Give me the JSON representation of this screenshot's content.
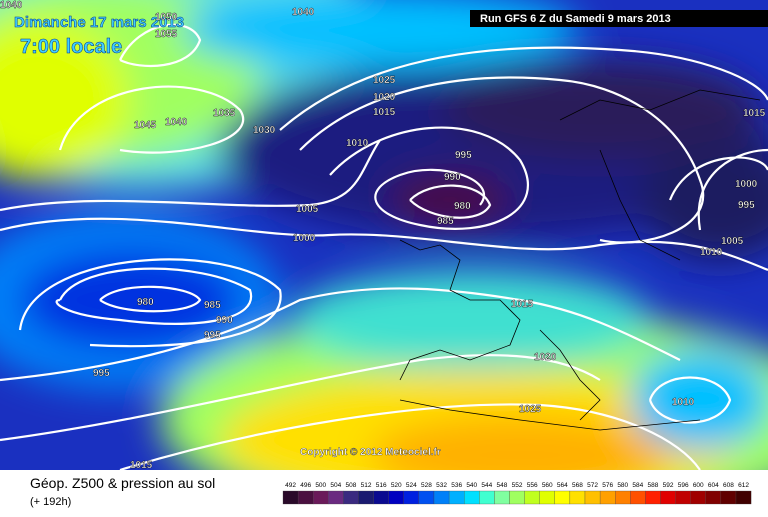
{
  "header": {
    "date": "Dimanche 17 mars 2013",
    "time": "7:00 locale",
    "run": "Run GFS 6 Z du Samedi 9 mars 2013"
  },
  "map": {
    "copyright": "Copyright © 2012 Meteociel.fr",
    "isobar_labels": [
      "1040",
      "1050",
      "1055",
      "1040",
      "1045",
      "1040",
      "1035",
      "1030",
      "1025",
      "1020",
      "1015",
      "1010",
      "995",
      "990",
      "980",
      "985",
      "1005",
      "1000",
      "1015",
      "1000",
      "995",
      "1005",
      "1010",
      "980",
      "985",
      "990",
      "995",
      "995",
      "1015",
      "1020",
      "1025",
      "1010",
      "1015"
    ]
  },
  "footer": {
    "title": "Géop. Z500 & pression au sol",
    "lead": "(+ 192h)"
  },
  "legend": {
    "labels": [
      "492",
      "496",
      "500",
      "504",
      "508",
      "512",
      "516",
      "520",
      "524",
      "528",
      "532",
      "536",
      "540",
      "544",
      "548",
      "552",
      "556",
      "560",
      "564",
      "568",
      "572",
      "576",
      "580",
      "584",
      "588",
      "592",
      "596",
      "600",
      "604",
      "608",
      "612"
    ],
    "colors": [
      "#2a0a2a",
      "#4a1040",
      "#6a1a5a",
      "#6a2a80",
      "#3a2a80",
      "#1a1a70",
      "#0a0a90",
      "#0000c0",
      "#0020e0",
      "#0050f0",
      "#0080f8",
      "#00b0ff",
      "#00e0ff",
      "#40ffd0",
      "#80ffa0",
      "#a0ff60",
      "#c0ff20",
      "#e0ff00",
      "#ffff00",
      "#ffe000",
      "#ffc000",
      "#ffa000",
      "#ff8000",
      "#ff5000",
      "#ff2000",
      "#e00000",
      "#c00000",
      "#a00000",
      "#800000",
      "#600000",
      "#400000"
    ]
  }
}
